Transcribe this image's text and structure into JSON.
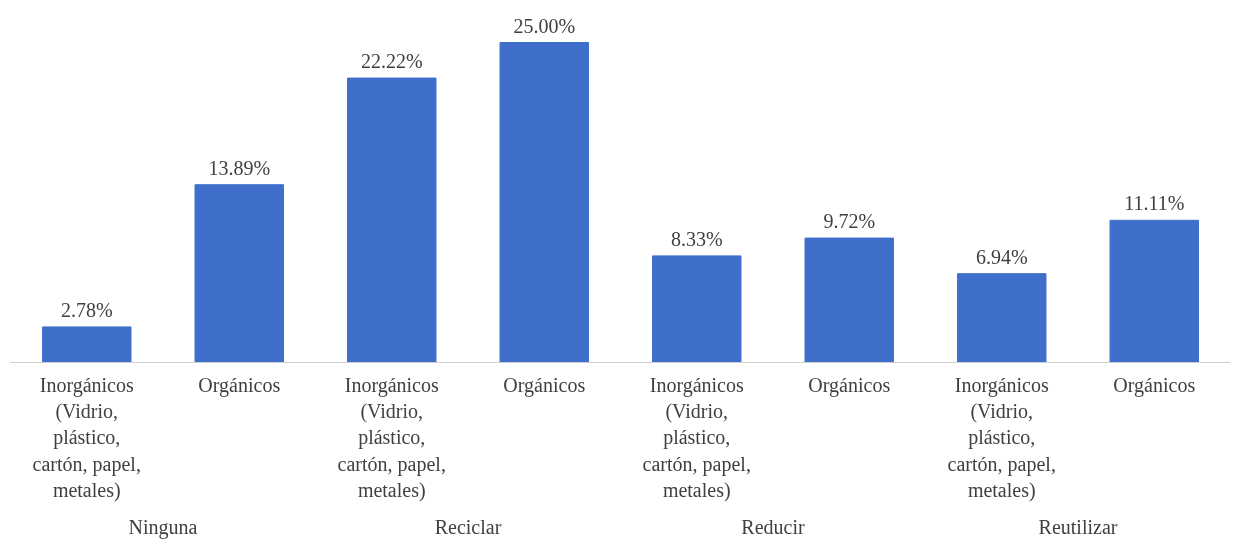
{
  "chart_data": {
    "type": "bar",
    "categories": [
      "Inorgánicos (Vidrio, plástico, cartón, papel, metales)",
      "Orgánicos",
      "Inorgánicos (Vidrio, plástico, cartón, papel, metales)",
      "Orgánicos",
      "Inorgánicos (Vidrio, plástico, cartón, papel, metales)",
      "Orgánicos",
      "Inorgánicos (Vidrio, plástico, cartón, papel, metales)",
      "Orgánicos"
    ],
    "values": [
      2.78,
      13.89,
      22.22,
      25.0,
      8.33,
      9.72,
      6.94,
      11.11
    ],
    "value_labels": [
      "2.78%",
      "13.89%",
      "22.22%",
      "25.00%",
      "8.33%",
      "9.72%",
      "6.94%",
      "11.11%"
    ],
    "color": "#3f6fcb",
    "annotations": [
      "Ninguna",
      "Reciclar",
      "Reducir",
      "Reutilizar"
    ],
    "grid": false
  }
}
